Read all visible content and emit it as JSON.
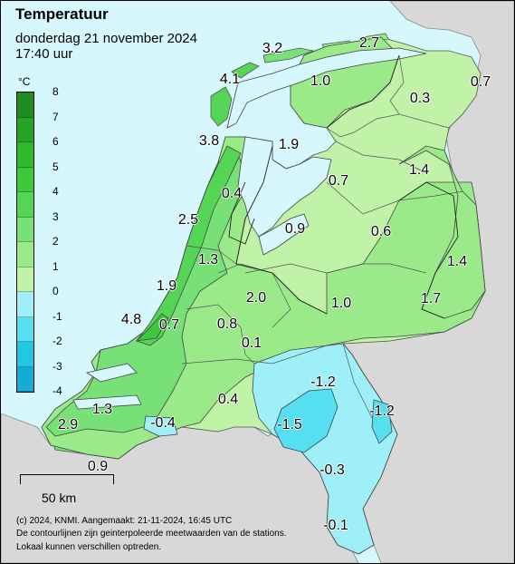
{
  "header": {
    "title": "Temperatuur",
    "date": "donderdag 21 november 2024",
    "time": "17:40 uur"
  },
  "legend": {
    "unit": "°C",
    "ticks": [
      "8",
      "7",
      "6",
      "5",
      "4",
      "3",
      "2",
      "1",
      "0",
      "-1",
      "-2",
      "-3",
      "-4"
    ],
    "bands": [
      {
        "from": 7,
        "to": 8,
        "color": "#1e8c1e"
      },
      {
        "from": 6,
        "to": 7,
        "color": "#25a325"
      },
      {
        "from": 5,
        "to": 6,
        "color": "#2db92d"
      },
      {
        "from": 4,
        "to": 5,
        "color": "#3cc83c"
      },
      {
        "from": 3,
        "to": 4,
        "color": "#55d555"
      },
      {
        "from": 2,
        "to": 3,
        "color": "#77e077"
      },
      {
        "from": 1,
        "to": 2,
        "color": "#9aea8a"
      },
      {
        "from": 0,
        "to": 1,
        "color": "#c0f2a8"
      },
      {
        "from": -1,
        "to": 0,
        "color": "#9eeff8"
      },
      {
        "from": -2,
        "to": -1,
        "color": "#55dff0"
      },
      {
        "from": -3,
        "to": -2,
        "color": "#20c8e3"
      },
      {
        "from": -4,
        "to": -3,
        "color": "#12acd6"
      }
    ]
  },
  "station_values": [
    "3.2",
    "2.7",
    "4.1",
    "1.0",
    "0.7",
    "0.3",
    "3.8",
    "1.9",
    "1.4",
    "0.7",
    "0.4",
    "2.5",
    "0.9",
    "0.6",
    "1.4",
    "1.3",
    "1.9",
    "2.0",
    "1.0",
    "1.7",
    "4.8",
    "0.7",
    "0.8",
    "0.1",
    "-1.2",
    "1.3",
    "0.4",
    "-1.2",
    "2.9",
    "-0.4",
    "-1.5",
    "0.9",
    "-0.3",
    "-0.1"
  ],
  "scale_bar": {
    "label": "50 km"
  },
  "footer": {
    "copyright": "(c) 2024, KNMI. Aangemaakt: 21-11-2024, 16:45 UTC",
    "note1": "De contourlijnen zijn geinterpoleerde meetwaarden van de stations.",
    "note2": "Lokaal kunnen verschillen optreden."
  },
  "colors": {
    "sea": "#d6f7fb",
    "neighbour_land": "#d8d8d8",
    "land_0_1": "#c0f2a8",
    "land_1_2": "#9aea8a",
    "land_2_3": "#77e077",
    "land_3_4": "#55d555",
    "land_4_5": "#3cc83c",
    "cold_0": "#9eeff8",
    "cold_1": "#55dff0"
  }
}
